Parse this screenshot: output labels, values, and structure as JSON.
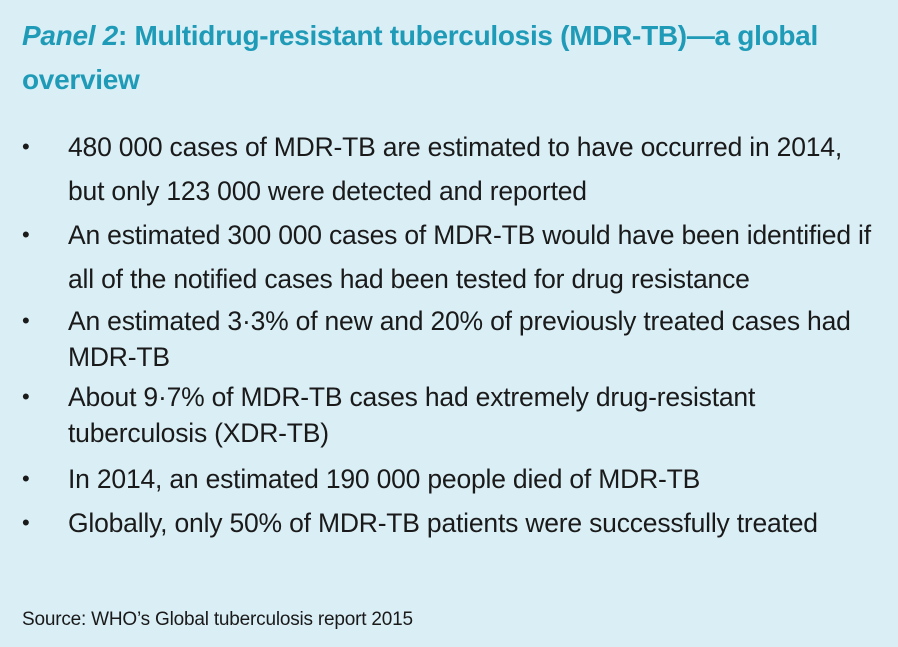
{
  "panel": {
    "title_label": "Panel 2",
    "title_text": ": Multidrug-resistant tuberculosis (MDR-TB)—a global overview",
    "bullet_symbol": "•",
    "bullets": [
      "480 000 cases of MDR-TB are estimated to have occurred in 2014, but only 123 000 were detected and reported",
      "An estimated 300 000 cases of MDR-TB would have been identified if all of the notified cases had been tested for drug resistance",
      "An estimated 3·3% of new and 20% of previously treated cases had MDR-TB",
      "About 9·7% of MDR-TB cases had extremely drug-resistant tuberculosis (XDR-TB)",
      "In 2014, an estimated 190 000 people died of MDR-TB",
      "Globally, only 50% of MDR-TB patients were successfully treated"
    ],
    "source": "Source: WHO’s Global tuberculosis report 2015"
  },
  "colors": {
    "background": "#d9eef5",
    "title": "#1f9bb8",
    "text": "#1a1a1a"
  }
}
